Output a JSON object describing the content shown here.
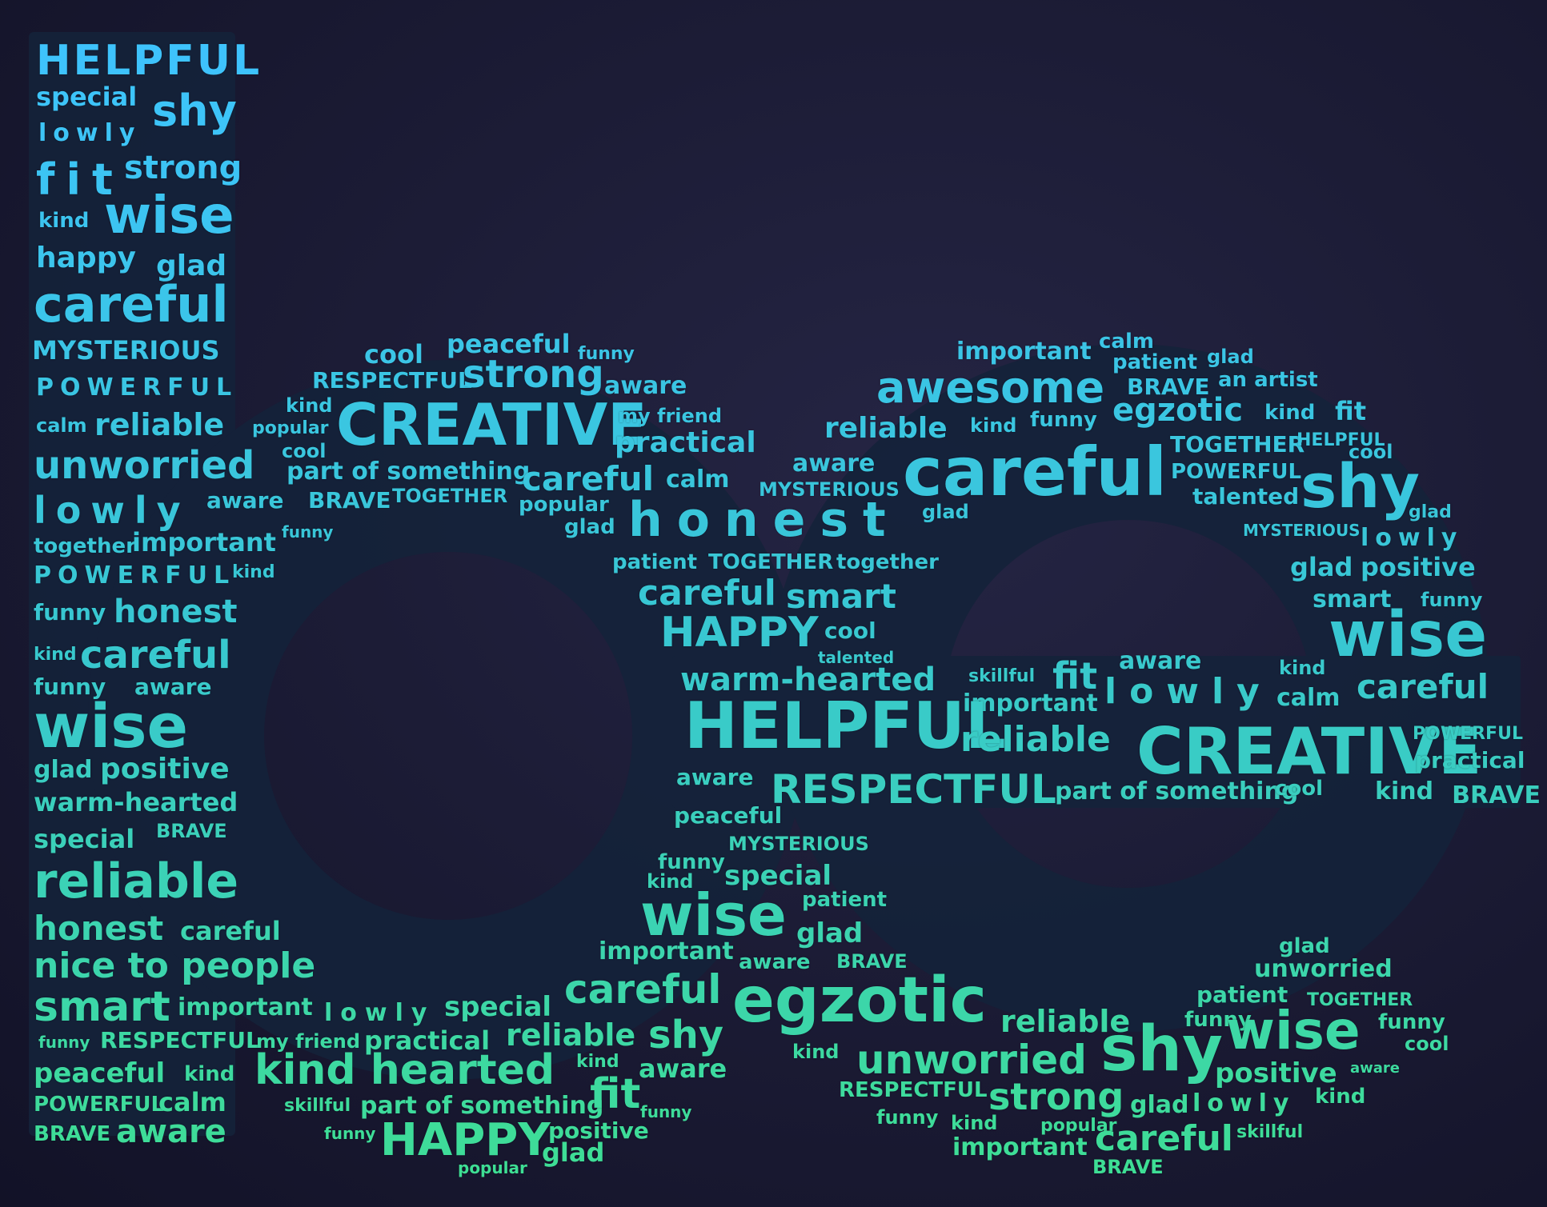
{
  "colors": {
    "background": "#1c1c36",
    "letter_fill": "#15233a",
    "gradient_top": "#3ec3ff",
    "gradient_mid": "#38c7d2",
    "gradient_bottom": "#3fe08f"
  },
  "words": [
    "HELPFUL",
    "special",
    "shy",
    "lowly",
    "fit",
    "strong",
    "kind",
    "wise",
    "happy",
    "glad",
    "careful",
    "MYSTERIOUS",
    "POWERFUL",
    "calm",
    "reliable",
    "unworried",
    "lowly",
    "together",
    "important",
    "POWERFUL",
    "kind",
    "funny",
    "honest",
    "kind",
    "careful",
    "funny",
    "aware",
    "wise",
    "glad",
    "positive",
    "warm-hearted",
    "special",
    "BRAVE",
    "reliable",
    "honest",
    "careful",
    "nice to people",
    "smart",
    "important",
    "funny",
    "RESPECTFUL",
    "peaceful",
    "kind",
    "POWERFUL",
    "calm",
    "BRAVE",
    "aware",
    "cool",
    "peaceful",
    "funny",
    "RESPECTFUL",
    "strong",
    "aware",
    "kind",
    "CREATIVE",
    "my friend",
    "popular",
    "practical",
    "cool",
    "part of something",
    "careful",
    "calm",
    "aware",
    "BRAVE",
    "TOGETHER",
    "popular",
    "glad",
    "funny",
    "honest",
    "patient",
    "TOGETHER",
    "together",
    "careful",
    "smart",
    "HAPPY",
    "cool",
    "talented",
    "warm-hearted",
    "skillful",
    "fit",
    "aware",
    "important",
    "lowly",
    "kind",
    "calm",
    "careful",
    "HELPFUL",
    "reliable",
    "CREATIVE",
    "POWERFUL",
    "practical",
    "aware",
    "RESPECTFUL",
    "part of something",
    "cool",
    "kind",
    "BRAVE",
    "important",
    "calm",
    "patient",
    "glad",
    "awesome",
    "BRAVE",
    "an artist",
    "egzotic",
    "kind",
    "fit",
    "reliable",
    "kind",
    "funny",
    "TOGETHER",
    "HELPFUL",
    "cool",
    "aware",
    "careful",
    "MYSTERIOUS",
    "POWERFUL",
    "shy",
    "talented",
    "glad",
    "MYSTERIOUS",
    "glad",
    "lowly",
    "glad",
    "positive",
    "smart",
    "funny",
    "wise",
    "peaceful",
    "MYSTERIOUS",
    "funny",
    "kind",
    "special",
    "patient",
    "wise",
    "glad",
    "important",
    "aware",
    "BRAVE",
    "careful",
    "egzotic",
    "lowly",
    "special",
    "my friend",
    "practical",
    "reliable",
    "shy",
    "kind",
    "aware",
    "kind hearted",
    "skillful",
    "part of something",
    "fit",
    "funny",
    "funny",
    "HAPPY",
    "positive",
    "glad",
    "popular",
    "glad",
    "unworried",
    "patient",
    "TOGETHER",
    "funny",
    "wise",
    "funny",
    "cool",
    "reliable",
    "kind",
    "unworried",
    "shy",
    "positive",
    "aware",
    "RESPECTFUL",
    "strong",
    "glad",
    "lowly",
    "kind",
    "funny",
    "kind",
    "popular",
    "important",
    "careful",
    "skillful",
    "BRAVE"
  ]
}
